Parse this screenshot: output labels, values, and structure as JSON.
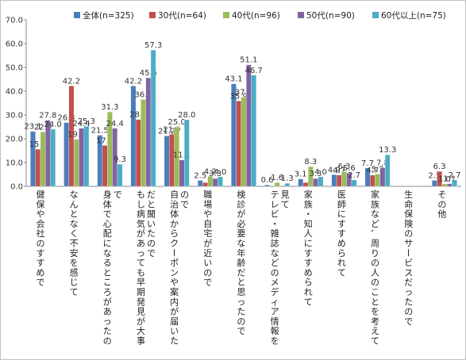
{
  "chart_data": {
    "type": "bar",
    "title": "",
    "xlabel": "",
    "ylabel": "",
    "ylim": [
      0,
      70
    ],
    "yticks": [
      "0.0",
      "10.0",
      "20.0",
      "30.0",
      "40.0",
      "50.0",
      "60.0",
      "70.0"
    ],
    "grid": "none",
    "legend_position": "top",
    "categories": [
      "健保や会社のすすめで",
      "なんとなく不安を感じて",
      "身体で心配になるところがあったので",
      "もし病気があっても早期発見が大事だと聞いたので",
      "自治体からクーポンや案内が届いたので",
      "職場や自宅が近いので",
      "検診が必要な年齢だと思ったので",
      "テレビ・雑誌などのメディア情報を見て",
      "家族・知人にすすめられて",
      "医師にすすめられて",
      "家族など、周りの人のことを考えて",
      "生命保険のサービスだったので",
      "その他"
    ],
    "series": [
      {
        "name": "全体(n=325)",
        "color": "#4a7ebb",
        "values": [
          23.1,
          26.8,
          21.5,
          42.2,
          21.2,
          2.5,
          43.1,
          0.6,
          3.1,
          4.9,
          7.7,
          0.0,
          2.5
        ],
        "labels": [
          "23.1",
          "26.8",
          "21.5",
          "42.2",
          "21.2",
          "2.5",
          "43.1",
          "0.6",
          "3.1",
          "4.9",
          "7.7",
          "",
          "2.5"
        ]
      },
      {
        "name": "30代(n=64)",
        "color": "#c0504d",
        "values": [
          15.6,
          42.2,
          17.2,
          28.1,
          21.9,
          1.6,
          35.9,
          0.0,
          1.6,
          4.7,
          4.7,
          0.0,
          6.3
        ],
        "labels": [
          "15.6",
          "42.2",
          "17.2",
          "28.1",
          "21.9",
          "",
          "35.9",
          "",
          "",
          "4.7",
          "4.7",
          "",
          "6.3"
        ]
      },
      {
        "name": "40代(n=96)",
        "color": "#9bbb59",
        "values": [
          22.9,
          19.8,
          31.3,
          36.5,
          25.0,
          4.2,
          37.5,
          1.6,
          8.3,
          6.3,
          5.2,
          0.0,
          1.0
        ],
        "labels": [
          "22.9",
          "19.8",
          "31.3",
          "36.5",
          "25.0",
          "4.2",
          "37.5",
          "1.6",
          "8.3",
          "6.3",
          "5.2",
          "",
          "1.0"
        ]
      },
      {
        "name": "50代(n=90)",
        "color": "#8064a2",
        "values": [
          27.8,
          24.4,
          24.4,
          45.6,
          11.1,
          3.3,
          51.1,
          0.0,
          3.3,
          5.6,
          7.8,
          0.0,
          1.1
        ],
        "labels": [
          "27.8",
          "24.4",
          "24.4",
          "45.6",
          "11.1",
          "3.3",
          "51.1",
          "",
          "3.3",
          "5.6",
          "7.8",
          "",
          "1.1"
        ]
      },
      {
        "name": "60代以上(n=75)",
        "color": "#4bacc6",
        "values": [
          24.0,
          25.3,
          9.3,
          57.3,
          28.0,
          4.0,
          46.7,
          1.3,
          4.0,
          2.7,
          13.3,
          0.0,
          2.7
        ],
        "labels": [
          "24.0",
          "25.3",
          "9.3",
          "57.3",
          "28.0",
          "4.0",
          "46.7",
          "1.3",
          "4.0",
          "2.7",
          "13.3",
          "",
          "2.7"
        ]
      }
    ]
  }
}
